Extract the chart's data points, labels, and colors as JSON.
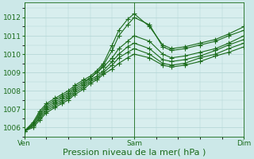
{
  "background_color": "#cce8e8",
  "plot_bg_color": "#d8eeee",
  "grid_color": "#b0d4d4",
  "line_color": "#1a6b1a",
  "marker": "+",
  "markersize": 4,
  "linewidth": 0.8,
  "xlabel": "Pression niveau de la mer( hPa )",
  "xlabel_fontsize": 8,
  "tick_fontsize": 6.5,
  "ylim": [
    1005.5,
    1012.8
  ],
  "yticks": [
    1006,
    1007,
    1008,
    1009,
    1010,
    1011,
    1012
  ],
  "xtick_labels": [
    "Ven",
    "Sam",
    "Dim"
  ],
  "xtick_positions": [
    0.0,
    0.5,
    1.0
  ],
  "series": [
    {
      "x": [
        0.0,
        0.04,
        0.07,
        0.1,
        0.14,
        0.17,
        0.2,
        0.23,
        0.27,
        0.3,
        0.33,
        0.36,
        0.4,
        0.43,
        0.47,
        0.5,
        0.57,
        0.63,
        0.67,
        0.73,
        0.8,
        0.87,
        0.93,
        1.0
      ],
      "y": [
        1005.8,
        1006.3,
        1006.9,
        1007.3,
        1007.6,
        1007.8,
        1008.0,
        1008.3,
        1008.6,
        1008.8,
        1009.1,
        1009.5,
        1010.5,
        1011.3,
        1011.9,
        1012.2,
        1011.5,
        1010.5,
        1010.3,
        1010.4,
        1010.6,
        1010.8,
        1011.1,
        1011.5
      ]
    },
    {
      "x": [
        0.0,
        0.04,
        0.07,
        0.1,
        0.14,
        0.17,
        0.2,
        0.23,
        0.27,
        0.3,
        0.33,
        0.36,
        0.4,
        0.43,
        0.47,
        0.5,
        0.57,
        0.63,
        0.67,
        0.73,
        0.8,
        0.87,
        0.93,
        1.0
      ],
      "y": [
        1005.8,
        1006.2,
        1006.8,
        1007.2,
        1007.5,
        1007.7,
        1007.9,
        1008.2,
        1008.5,
        1008.7,
        1009.0,
        1009.4,
        1010.2,
        1011.0,
        1011.6,
        1012.0,
        1011.6,
        1010.4,
        1010.2,
        1010.3,
        1010.5,
        1010.7,
        1011.0,
        1011.3
      ]
    },
    {
      "x": [
        0.0,
        0.04,
        0.07,
        0.1,
        0.14,
        0.17,
        0.2,
        0.23,
        0.27,
        0.3,
        0.33,
        0.36,
        0.4,
        0.43,
        0.47,
        0.5,
        0.57,
        0.63,
        0.67,
        0.73,
        0.8,
        0.87,
        0.93,
        1.0
      ],
      "y": [
        1005.8,
        1006.2,
        1006.7,
        1007.1,
        1007.4,
        1007.6,
        1007.8,
        1008.1,
        1008.4,
        1008.7,
        1009.0,
        1009.3,
        1009.8,
        1010.3,
        1010.7,
        1011.0,
        1010.7,
        1010.0,
        1009.8,
        1009.9,
        1010.1,
        1010.3,
        1010.6,
        1011.0
      ]
    },
    {
      "x": [
        0.0,
        0.04,
        0.07,
        0.1,
        0.14,
        0.17,
        0.2,
        0.23,
        0.27,
        0.3,
        0.33,
        0.36,
        0.4,
        0.43,
        0.47,
        0.5,
        0.57,
        0.63,
        0.67,
        0.73,
        0.8,
        0.87,
        0.93,
        1.0
      ],
      "y": [
        1005.8,
        1006.1,
        1006.6,
        1007.0,
        1007.3,
        1007.5,
        1007.7,
        1008.0,
        1008.3,
        1008.6,
        1008.8,
        1009.1,
        1009.6,
        1010.0,
        1010.4,
        1010.6,
        1010.3,
        1009.7,
        1009.6,
        1009.7,
        1009.9,
        1010.2,
        1010.5,
        1010.8
      ]
    },
    {
      "x": [
        0.0,
        0.04,
        0.07,
        0.1,
        0.14,
        0.17,
        0.2,
        0.23,
        0.27,
        0.3,
        0.33,
        0.36,
        0.4,
        0.43,
        0.47,
        0.5,
        0.57,
        0.63,
        0.67,
        0.73,
        0.8,
        0.87,
        0.93,
        1.0
      ],
      "y": [
        1005.8,
        1006.1,
        1006.5,
        1006.9,
        1007.2,
        1007.4,
        1007.6,
        1007.9,
        1008.2,
        1008.5,
        1008.7,
        1009.0,
        1009.4,
        1009.8,
        1010.1,
        1010.3,
        1010.0,
        1009.5,
        1009.4,
        1009.5,
        1009.8,
        1010.0,
        1010.3,
        1010.6
      ]
    },
    {
      "x": [
        0.0,
        0.04,
        0.07,
        0.1,
        0.14,
        0.17,
        0.2,
        0.23,
        0.27,
        0.3,
        0.33,
        0.36,
        0.4,
        0.43,
        0.47,
        0.5,
        0.57,
        0.63,
        0.67,
        0.73,
        0.8,
        0.87,
        0.93,
        1.0
      ],
      "y": [
        1005.8,
        1006.0,
        1006.4,
        1006.8,
        1007.1,
        1007.3,
        1007.5,
        1007.8,
        1008.1,
        1008.4,
        1008.6,
        1008.9,
        1009.2,
        1009.5,
        1009.8,
        1010.0,
        1009.8,
        1009.4,
        1009.3,
        1009.4,
        1009.6,
        1009.9,
        1010.1,
        1010.4
      ]
    }
  ]
}
